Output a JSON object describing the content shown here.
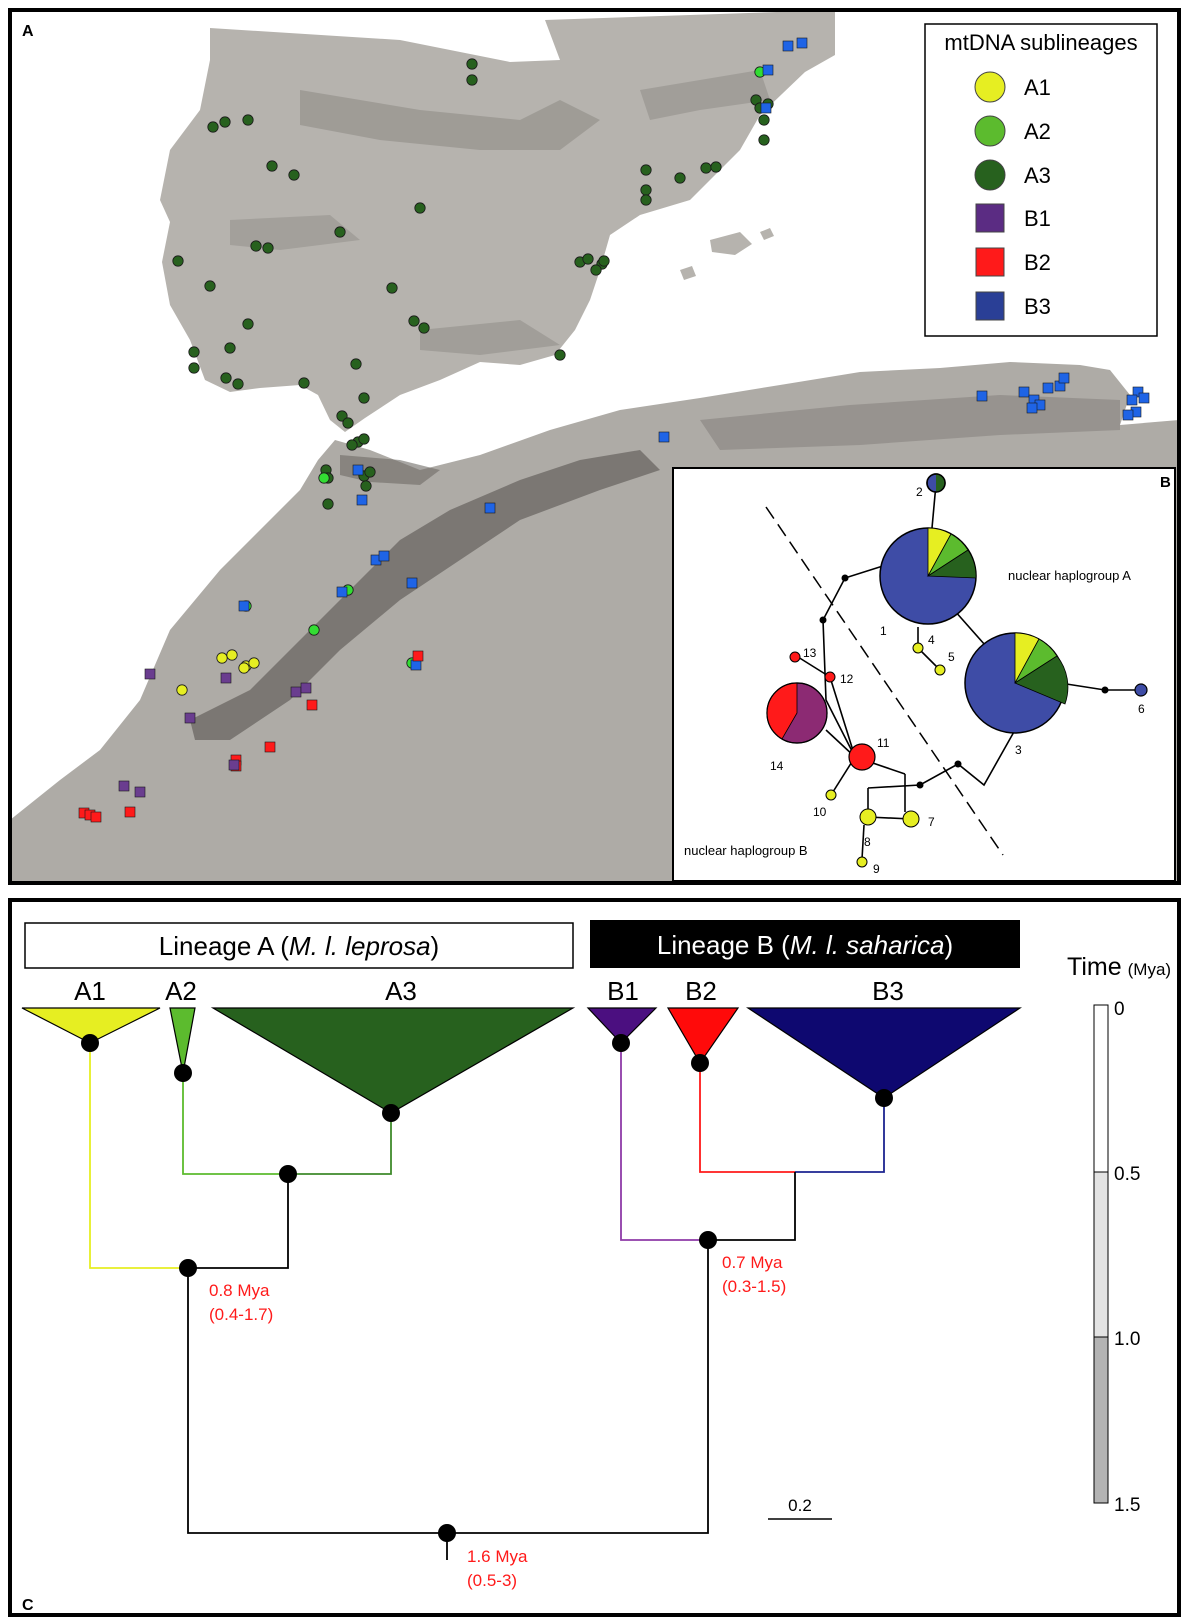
{
  "panels": {
    "a_letter": "A",
    "b_letter": "B",
    "c_letter": "C"
  },
  "legend": {
    "title": "mtDNA sublineages",
    "items": [
      {
        "label": "A1",
        "shape": "circle",
        "color": "#e6ee22"
      },
      {
        "label": "A2",
        "shape": "circle",
        "color": "#5cbb2e"
      },
      {
        "label": "A3",
        "shape": "circle",
        "color": "#27611e"
      },
      {
        "label": "B1",
        "shape": "square",
        "color": "#5b2c83"
      },
      {
        "label": "B2",
        "shape": "square",
        "color": "#ff1a1a"
      },
      {
        "label": "B3",
        "shape": "square",
        "color": "#2a3f96"
      }
    ]
  },
  "network": {
    "group_a_label": "nuclear haplogroup A",
    "group_b_label": "nuclear haplogroup B",
    "haplotypes": [
      "1",
      "2",
      "3",
      "4",
      "5",
      "6",
      "7",
      "8",
      "9",
      "10",
      "11",
      "12",
      "13",
      "14"
    ]
  },
  "tree": {
    "lineage_a_prefix": "Lineage A (",
    "lineage_a_italic": "M. l. leprosa",
    "lineage_a_suffix": ")",
    "lineage_b_prefix": "Lineage B (",
    "lineage_b_italic": "M. l. saharica",
    "lineage_b_suffix": ")",
    "clades": [
      "A1",
      "A2",
      "A3",
      "B1",
      "B2",
      "B3"
    ],
    "node_a_age": "0.8 Mya",
    "node_a_ci": "(0.4-1.7)",
    "node_b_age": "0.7 Mya",
    "node_b_ci": "(0.3-1.5)",
    "root_age": "1.6 Mya",
    "root_ci": "(0.5-3)",
    "scale_bar": "0.2"
  },
  "time_scale": {
    "title": "Time",
    "unit": "(Mya)",
    "ticks": [
      "0",
      "0.5",
      "1.0",
      "1.5"
    ]
  },
  "colors": {
    "a1": "#e6ee22",
    "a2": "#5cbb2e",
    "a3": "#27611e",
    "b1": "#4b0f80",
    "b2": "#ff0a0a",
    "b3": "#0e0870",
    "b3_map": "#1f64e6"
  }
}
